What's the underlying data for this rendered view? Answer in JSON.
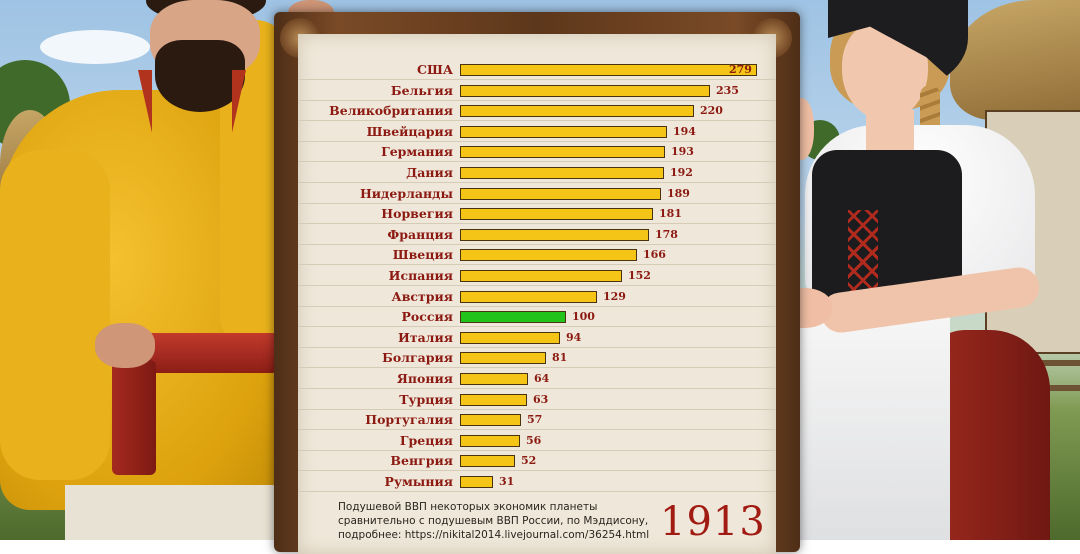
{
  "chart_data": {
    "type": "bar",
    "orientation": "horizontal",
    "categories": [
      "США",
      "Бельгия",
      "Великобритания",
      "Швейцария",
      "Германия",
      "Дания",
      "Нидерланды",
      "Норвегия",
      "Франция",
      "Швеция",
      "Испания",
      "Австрия",
      "Россия",
      "Италия",
      "Болгария",
      "Япония",
      "Турция",
      "Португалия",
      "Греция",
      "Венгрия",
      "Румыния"
    ],
    "values": [
      279,
      235,
      220,
      194,
      193,
      192,
      189,
      181,
      178,
      166,
      152,
      129,
      100,
      94,
      81,
      64,
      63,
      57,
      56,
      52,
      31
    ],
    "highlight": "Россия",
    "colors": {
      "bar": "#f4c516",
      "highlight": "#22c41c",
      "label": "#8c1a12"
    },
    "grid": false,
    "legend": "none",
    "xlim": [
      0,
      279
    ]
  },
  "caption": {
    "line1": "Подушевой ВВП некоторых экономик планеты",
    "line2": "сравнительно с подушевым ВВП России, по Мэддисону,",
    "line3": "подробнее: https://nikital2014.livejournal.com/36254.html"
  },
  "year": "1913"
}
